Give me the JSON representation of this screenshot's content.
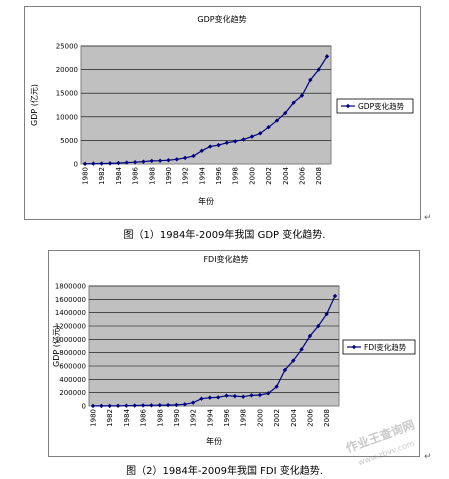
{
  "captions": [
    "图（1）1984年-2009年我国 GDP 变化趋势.",
    "图（2）1984年-2009年我国 FDI 变化趋势."
  ],
  "paragraph_mark": "↵",
  "watermark": {
    "line1": "作业王查询网",
    "line2": "www.zbvv.com"
  },
  "colors": {
    "plot_bg": "#C0C0C0",
    "series": "#000080",
    "grid": "#000000"
  },
  "chart_data": [
    {
      "type": "line",
      "title": "GDP变化趋势",
      "xlabel": "年份",
      "ylabel": "GDP (亿元)",
      "legend": "GDP变化趋势",
      "legend_position": "right",
      "grid": true,
      "ylim": [
        0,
        25000
      ],
      "yticks": [
        0,
        5000,
        10000,
        15000,
        20000,
        25000
      ],
      "ytick_labels": [
        "0",
        "5000",
        "10000",
        "15000",
        "20000",
        "25000"
      ],
      "xtick_labels": [
        "1980",
        "1982",
        "1984",
        "1986",
        "1988",
        "1990",
        "1992",
        "1994",
        "1996",
        "1998",
        "2000",
        "2002",
        "2004",
        "2006",
        "2008"
      ],
      "x": [
        1980,
        1981,
        1982,
        1983,
        1984,
        1985,
        1986,
        1987,
        1988,
        1989,
        1990,
        1991,
        1992,
        1993,
        1994,
        1995,
        1996,
        1997,
        1998,
        1999,
        2000,
        2001,
        2002,
        2003,
        2004,
        2005,
        2006,
        2007,
        2008,
        2009
      ],
      "values": [
        50,
        80,
        100,
        130,
        200,
        300,
        380,
        500,
        650,
        700,
        800,
        1000,
        1300,
        1700,
        2800,
        3700,
        4000,
        4500,
        4800,
        5200,
        5800,
        6500,
        7800,
        9200,
        10800,
        13000,
        14500,
        17800,
        20000,
        22800
      ]
    },
    {
      "type": "line",
      "title": "FDI变化趋势",
      "xlabel": "年份",
      "ylabel": "GDP (亿元)",
      "legend": "FDI变化趋势",
      "legend_position": "right",
      "grid": true,
      "ylim": [
        0,
        1800000
      ],
      "yticks": [
        0,
        200000,
        400000,
        600000,
        800000,
        1000000,
        1200000,
        1400000,
        1600000,
        1800000
      ],
      "ytick_labels": [
        "0",
        "200000",
        "400000",
        "600000",
        "800000",
        "1000000",
        "1200000",
        "1400000",
        "1600000",
        "1800000"
      ],
      "xtick_labels": [
        "1980",
        "1982",
        "1984",
        "1986",
        "1988",
        "1990",
        "1992",
        "1994",
        "1996",
        "1998",
        "2000",
        "2002",
        "2004",
        "2006",
        "2008"
      ],
      "x": [
        1980,
        1981,
        1982,
        1983,
        1984,
        1985,
        1986,
        1987,
        1988,
        1989,
        1990,
        1991,
        1992,
        1993,
        1994,
        1995,
        1996,
        1997,
        1998,
        1999,
        2000,
        2001,
        2002,
        2003,
        2004,
        2005,
        2006,
        2007,
        2008,
        2009
      ],
      "values": [
        1000,
        1500,
        2000,
        3000,
        5000,
        7000,
        9000,
        10000,
        12000,
        14000,
        16000,
        25000,
        50000,
        110000,
        125000,
        130000,
        155000,
        148000,
        140000,
        160000,
        165000,
        190000,
        290000,
        540000,
        680000,
        850000,
        1050000,
        1200000,
        1380000,
        1650000
      ]
    }
  ]
}
